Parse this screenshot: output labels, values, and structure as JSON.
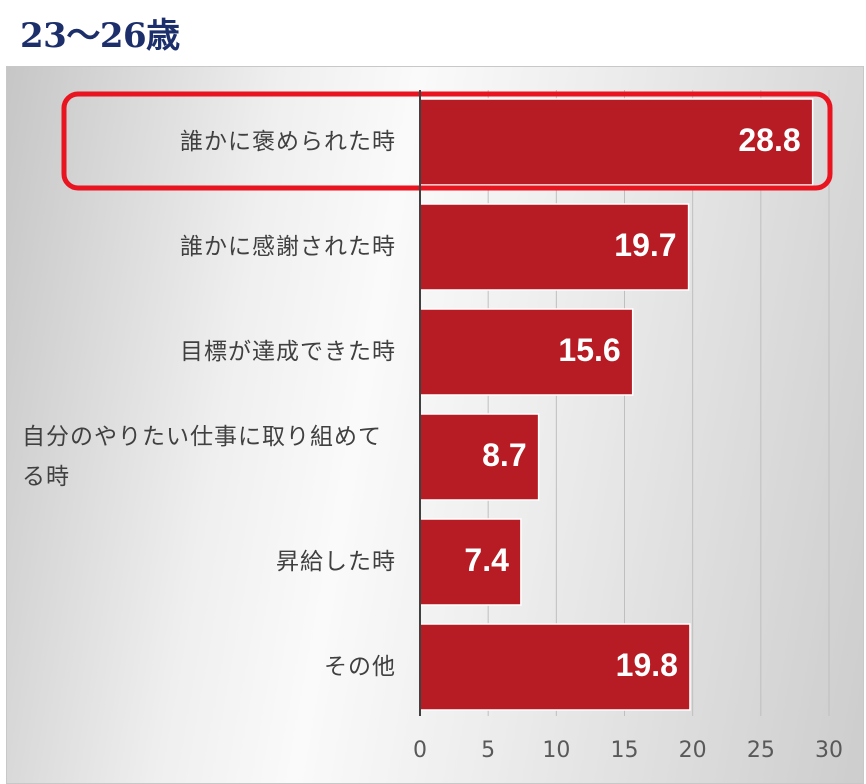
{
  "header": {
    "title": "23〜26歳"
  },
  "chart_data": {
    "type": "bar",
    "orientation": "horizontal",
    "categories": [
      "誰かに褒められた時",
      "誰かに感謝された時",
      "目標が達成できた時",
      "自分のやりたい仕事に取り組めてる時",
      "昇給した時",
      "その他"
    ],
    "category_label_lines": [
      [
        "誰かに褒められた時"
      ],
      [
        "誰かに感謝された時"
      ],
      [
        "目標が達成できた時"
      ],
      [
        "自分のやりたい仕事に取り組めて",
        "る時"
      ],
      [
        "昇給した時"
      ],
      [
        "その他"
      ]
    ],
    "values": [
      28.8,
      19.7,
      15.6,
      8.7,
      7.4,
      19.8
    ],
    "value_labels": [
      "28.8",
      "19.7",
      "15.6",
      "8.7",
      "7.4",
      "19.8"
    ],
    "xlim": [
      0,
      30
    ],
    "xticks": [
      0,
      5,
      10,
      15,
      20,
      25,
      30
    ],
    "xtick_labels": [
      "0",
      "5",
      "10",
      "15",
      "20",
      "25",
      "30"
    ],
    "highlight_index": 0,
    "colors": {
      "bar": "#b71c24",
      "highlight": "#e8141f",
      "grid": "#bfbfbf",
      "axis": "#404040"
    }
  }
}
